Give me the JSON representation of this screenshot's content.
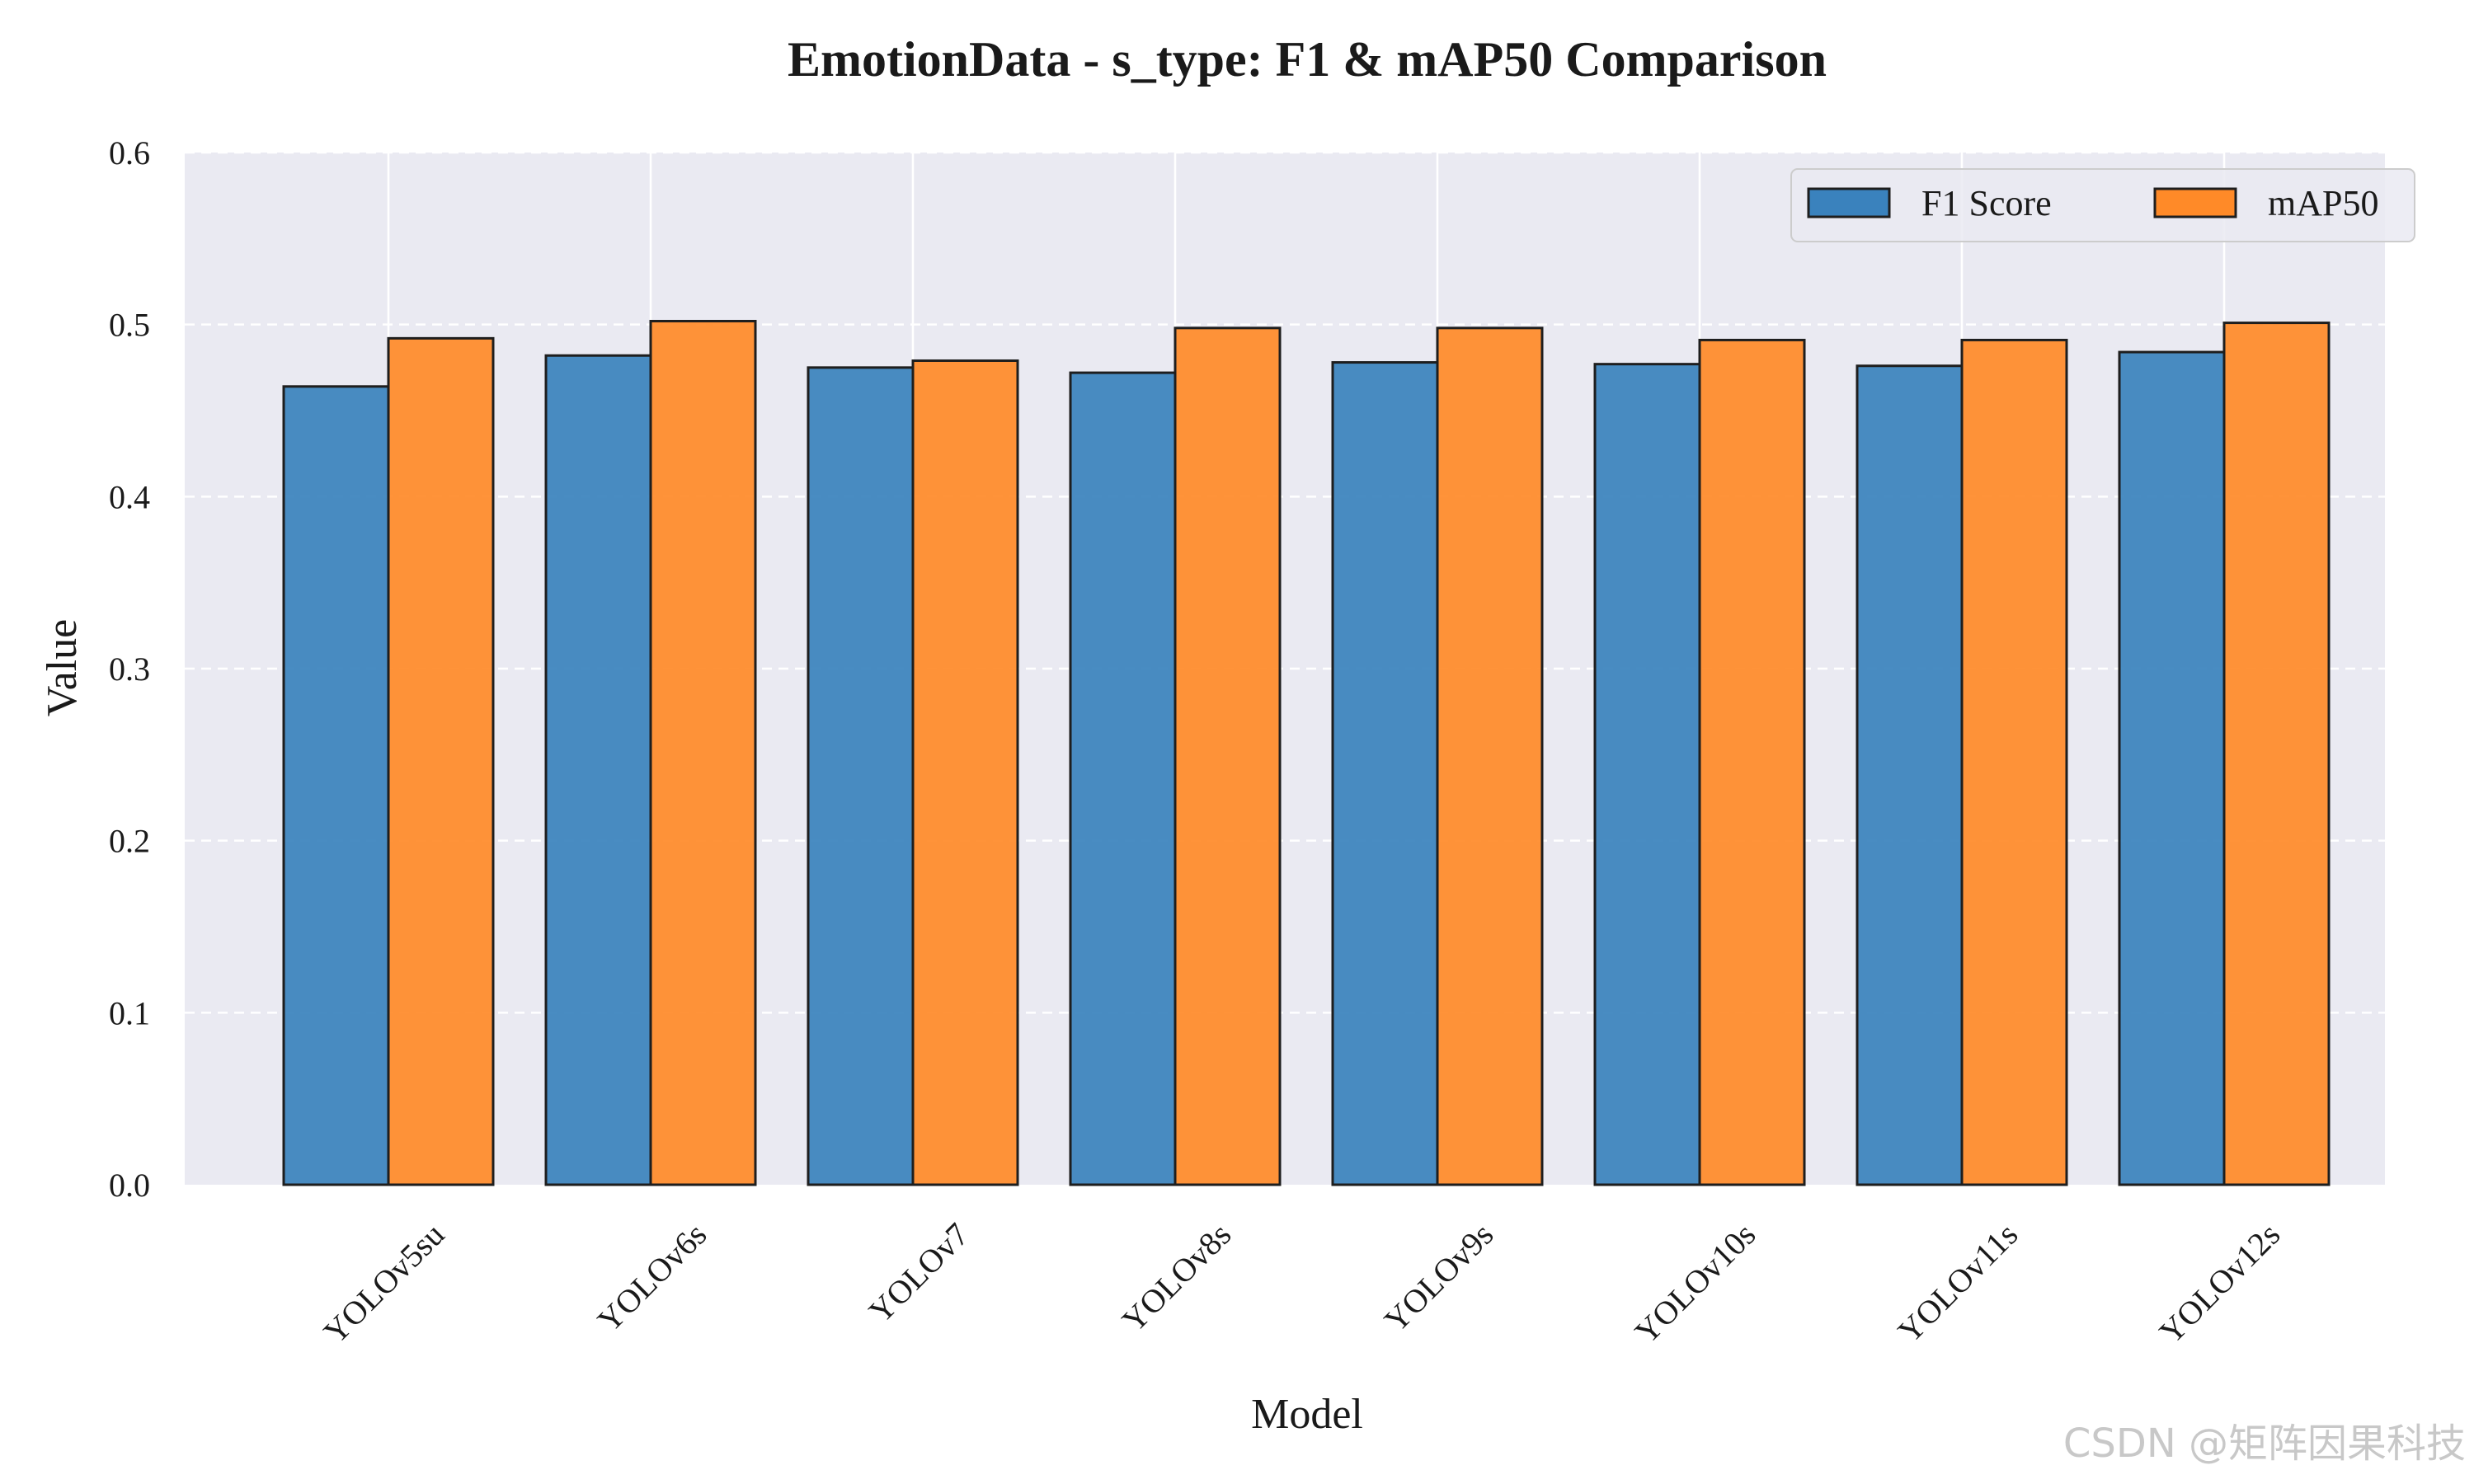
{
  "chart_data": {
    "type": "bar",
    "title": "EmotionData - s_type: F1 & mAP50 Comparison",
    "xlabel": "Model",
    "ylabel": "Value",
    "ylim": [
      0,
      0.6
    ],
    "yticks": [
      "0.0",
      "0.1",
      "0.2",
      "0.3",
      "0.4",
      "0.5",
      "0.6"
    ],
    "categories": [
      "YOLOv5su",
      "YOLOv6s",
      "YOLOv7",
      "YOLOv8s",
      "YOLOv9s",
      "YOLOv10s",
      "YOLOv11s",
      "YOLOv12s"
    ],
    "series": [
      {
        "name": "F1 Score",
        "color": "#3a82bd",
        "values": [
          0.464,
          0.482,
          0.475,
          0.472,
          0.478,
          0.477,
          0.476,
          0.484
        ]
      },
      {
        "name": "mAP50",
        "color": "#ff8a28",
        "values": [
          0.492,
          0.502,
          0.479,
          0.498,
          0.498,
          0.491,
          0.491,
          0.501
        ]
      }
    ],
    "grid": true,
    "legend_position": "top-right",
    "background_color": "#eaeaf2"
  },
  "watermark": "CSDN @矩阵因果科技"
}
